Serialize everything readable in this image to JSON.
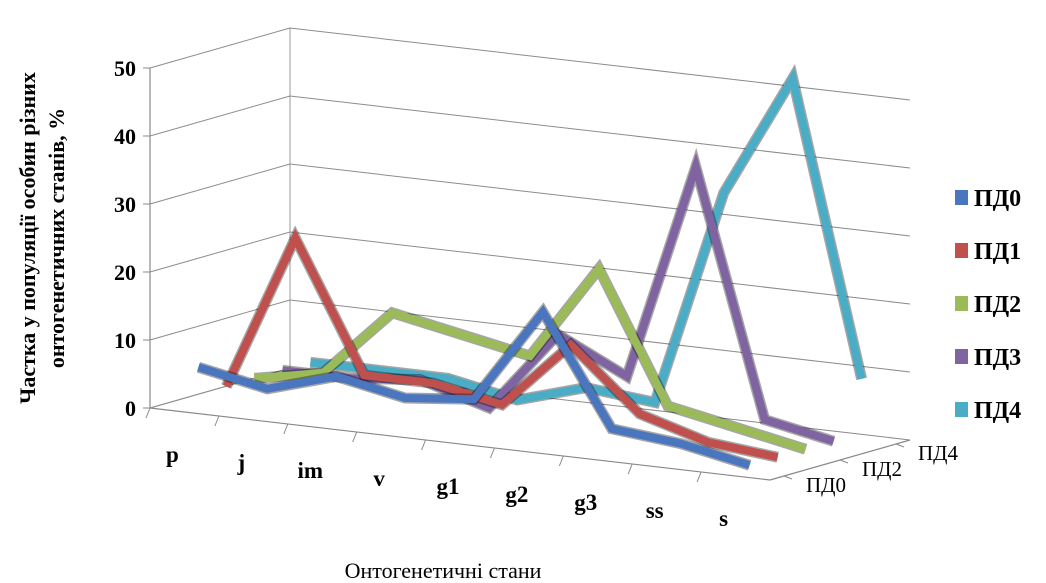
{
  "chart_data": {
    "type": "line",
    "title": "",
    "ylabel_line1": "Частка у популяції особин різних",
    "ylabel_line2": "онтогенетичних станів, %",
    "xlabel": "Онтогенетичні стани",
    "categories": [
      "p",
      "j",
      "im",
      "v",
      "g1",
      "g2",
      "g3",
      "ss",
      "s"
    ],
    "yticks": [
      0,
      10,
      20,
      30,
      40,
      50
    ],
    "ylim": [
      0,
      50
    ],
    "depth_ticks": [
      "ПД0",
      "ПД2",
      "ПД4"
    ],
    "legend_position": "right",
    "grid": true,
    "series": [
      {
        "name": "ПД0",
        "color": "#4a76c0",
        "values": [
          6,
          4,
          7,
          5,
          6,
          20,
          4,
          3,
          1
        ]
      },
      {
        "name": "ПД1",
        "color": "#c0504d",
        "values": [
          2,
          25,
          6,
          6,
          4,
          14,
          5,
          2,
          1
        ]
      },
      {
        "name": "ПД2",
        "color": "#9bbb59",
        "values": [
          2,
          4,
          14,
          12,
          10,
          24,
          5,
          3,
          1
        ]
      },
      {
        "name": "ПД3",
        "color": "#8064a2",
        "values": [
          2,
          2,
          3,
          0,
          12,
          7,
          39,
          3,
          1
        ]
      },
      {
        "name": "ПД4",
        "color": "#4bacc6",
        "values": [
          2,
          2,
          2,
          0,
          3,
          2,
          34,
          52,
          9
        ]
      }
    ]
  }
}
